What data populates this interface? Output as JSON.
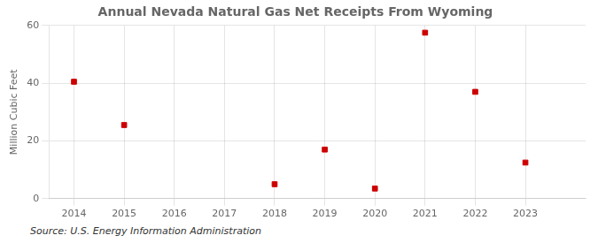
{
  "chart_data": {
    "type": "scatter",
    "title": "Annual Nevada Natural Gas Net Receipts From Wyoming",
    "ylabel": "Million Cubic Feet",
    "source": "Source: U.S. Energy Information Administration",
    "x": [
      2014,
      2015,
      2018,
      2019,
      2020,
      2021,
      2022,
      2023
    ],
    "values": [
      40.5,
      25.5,
      5.0,
      17.0,
      3.5,
      57.5,
      37.0,
      12.5
    ],
    "color": "#CC0000",
    "marker": "square",
    "xlim": [
      2013.5,
      2024.2
    ],
    "ylim": [
      0,
      60
    ],
    "xticks": [
      2014,
      2015,
      2016,
      2017,
      2018,
      2019,
      2020,
      2021,
      2022,
      2023
    ],
    "yticks": [
      0,
      20,
      40,
      60
    ],
    "grid": true
  }
}
